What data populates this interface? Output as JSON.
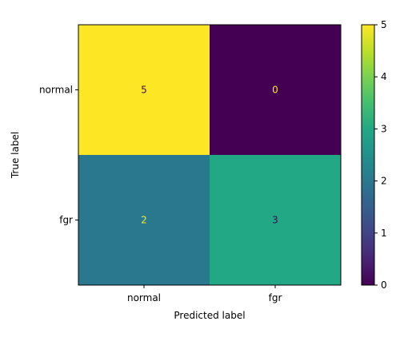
{
  "chart_data": {
    "type": "heatmap",
    "title": "",
    "xlabel": "Predicted label",
    "ylabel": "True label",
    "x_categories": [
      "normal",
      "fgr"
    ],
    "y_categories": [
      "normal",
      "fgr"
    ],
    "values": [
      [
        5,
        0
      ],
      [
        2,
        3
      ]
    ],
    "colorbar": {
      "ticks": [
        "0",
        "1",
        "2",
        "3",
        "4",
        "5"
      ],
      "range": [
        0,
        5
      ]
    },
    "colormap": "viridis",
    "colors": {
      "low": "#440154",
      "mid_low": "#31688e",
      "mid": "#21918c",
      "mid_high": "#35b779",
      "high": "#fde725",
      "text_on_dark": "#fde725",
      "text_on_light": "#440154"
    }
  }
}
